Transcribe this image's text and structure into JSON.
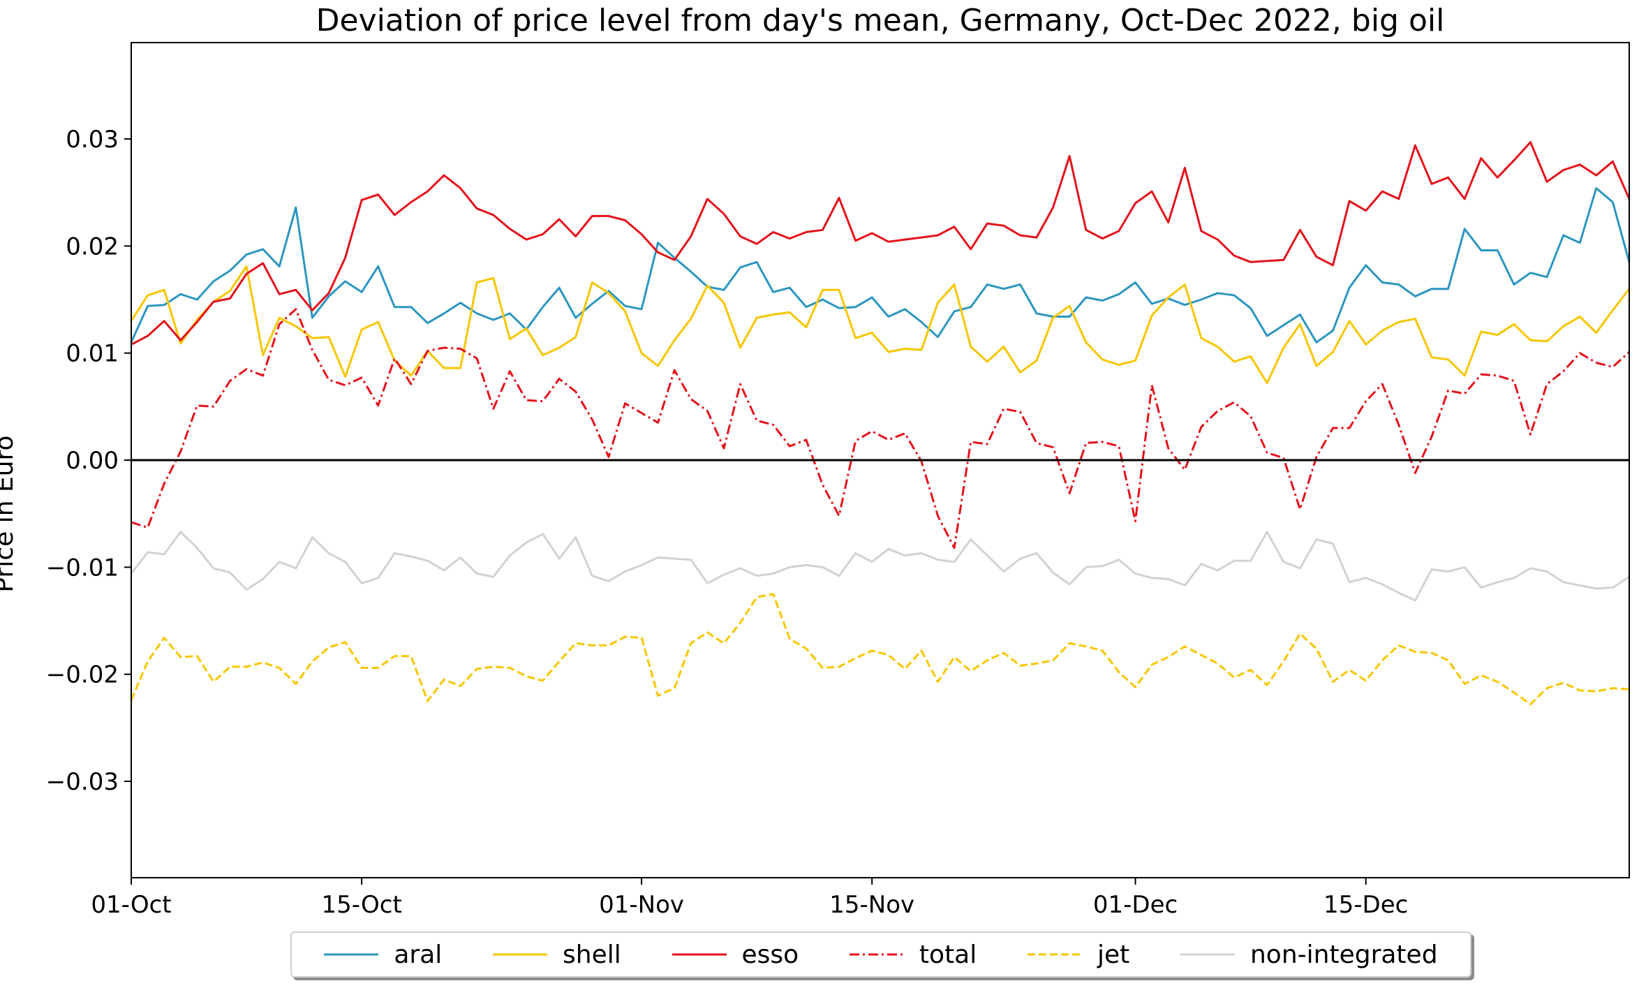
{
  "title": "Deviation of price level from day's mean, Germany, Oct-Dec 2022, big oil",
  "ylabel": "Price in Euro",
  "chart_data": {
    "type": "line",
    "title": "Deviation of price level from day's mean, Germany, Oct-Dec 2022, big oil",
    "xlabel": "",
    "ylabel": "Price in Euro",
    "x_start": "2022-10-01",
    "x_end": "2022-12-31",
    "xlim": [
      "2022-10-01",
      "2022-12-31"
    ],
    "ylim": [
      -0.039,
      0.039
    ],
    "x_ticks": [
      {
        "date": "2022-10-01",
        "label": "01-Oct"
      },
      {
        "date": "2022-10-15",
        "label": "15-Oct"
      },
      {
        "date": "2022-11-01",
        "label": "01-Nov"
      },
      {
        "date": "2022-11-15",
        "label": "15-Nov"
      },
      {
        "date": "2022-12-01",
        "label": "01-Dec"
      },
      {
        "date": "2022-12-15",
        "label": "15-Dec"
      }
    ],
    "y_ticks": [
      {
        "value": 0.03,
        "label": "0.03"
      },
      {
        "value": 0.02,
        "label": "0.02"
      },
      {
        "value": 0.01,
        "label": "0.01"
      },
      {
        "value": 0.0,
        "label": "0.00"
      },
      {
        "value": -0.01,
        "label": "−0.01"
      },
      {
        "value": -0.02,
        "label": "−0.02"
      },
      {
        "value": -0.03,
        "label": "−0.03"
      }
    ],
    "grid": false,
    "legend": "bottom-center",
    "zero_line": true,
    "series": [
      {
        "name": "aral",
        "color": "#2b96c0",
        "dash": "solid",
        "values": [
          0.011,
          0.0144,
          0.0145,
          0.0155,
          0.015,
          0.0167,
          0.0177,
          0.0192,
          0.0197,
          0.0181,
          0.0236,
          0.0133,
          0.0153,
          0.0167,
          0.0157,
          0.0181,
          0.0143,
          0.0143,
          0.0128,
          0.0137,
          0.0147,
          0.0137,
          0.0131,
          0.0137,
          0.0122,
          0.0143,
          0.0161,
          0.0133,
          0.0146,
          0.0158,
          0.0144,
          0.0141,
          0.0203,
          0.0189,
          0.0176,
          0.0162,
          0.0159,
          0.018,
          0.0185,
          0.0157,
          0.0161,
          0.0143,
          0.015,
          0.0142,
          0.0143,
          0.0152,
          0.0134,
          0.0141,
          0.0129,
          0.0115,
          0.0139,
          0.0143,
          0.0164,
          0.016,
          0.0164,
          0.0137,
          0.0134,
          0.0134,
          0.0152,
          0.0149,
          0.0155,
          0.0166,
          0.0146,
          0.0151,
          0.0145,
          0.015,
          0.0156,
          0.0154,
          0.0142,
          0.0116,
          0.0126,
          0.0136,
          0.011,
          0.0121,
          0.0161,
          0.0182,
          0.0166,
          0.0164,
          0.0153,
          0.016,
          0.016,
          0.0216,
          0.0196,
          0.0196,
          0.0164,
          0.0175,
          0.0171,
          0.021,
          0.0203,
          0.0254,
          0.0241,
          0.0185
        ]
      },
      {
        "name": "shell",
        "color": "#f7c600",
        "dash": "solid",
        "values": [
          0.013,
          0.0154,
          0.0159,
          0.0109,
          0.0131,
          0.0148,
          0.0158,
          0.0181,
          0.0098,
          0.0133,
          0.0125,
          0.0114,
          0.0115,
          0.0078,
          0.0122,
          0.0129,
          0.0093,
          0.0079,
          0.0102,
          0.0086,
          0.0086,
          0.0166,
          0.017,
          0.0113,
          0.0123,
          0.0098,
          0.0105,
          0.0115,
          0.0166,
          0.0156,
          0.0139,
          0.01,
          0.0088,
          0.0112,
          0.0132,
          0.0163,
          0.0147,
          0.0105,
          0.0133,
          0.0136,
          0.0138,
          0.0124,
          0.0159,
          0.0159,
          0.0114,
          0.0119,
          0.0101,
          0.0104,
          0.0103,
          0.0147,
          0.0164,
          0.0106,
          0.0092,
          0.0106,
          0.0082,
          0.0093,
          0.0133,
          0.0144,
          0.011,
          0.0094,
          0.0089,
          0.0093,
          0.0135,
          0.0152,
          0.0164,
          0.0114,
          0.0106,
          0.0092,
          0.0097,
          0.0072,
          0.0105,
          0.0127,
          0.0088,
          0.0101,
          0.013,
          0.0108,
          0.0121,
          0.0129,
          0.0132,
          0.0096,
          0.0094,
          0.0079,
          0.012,
          0.0117,
          0.0127,
          0.0112,
          0.0111,
          0.0125,
          0.0134,
          0.0119,
          0.014,
          0.016
        ]
      },
      {
        "name": "esso",
        "color": "#e3131b",
        "dash": "solid",
        "values": [
          0.0108,
          0.0116,
          0.013,
          0.0112,
          0.0129,
          0.0148,
          0.0151,
          0.0174,
          0.0184,
          0.0155,
          0.0159,
          0.014,
          0.0156,
          0.0189,
          0.0243,
          0.0248,
          0.0229,
          0.0241,
          0.0251,
          0.0266,
          0.0254,
          0.0235,
          0.0229,
          0.0216,
          0.0206,
          0.0211,
          0.0225,
          0.0209,
          0.0228,
          0.0228,
          0.0224,
          0.0211,
          0.0194,
          0.0187,
          0.0209,
          0.0244,
          0.023,
          0.0209,
          0.0202,
          0.0213,
          0.0207,
          0.0213,
          0.0215,
          0.0245,
          0.0205,
          0.0212,
          0.0204,
          0.0206,
          0.0208,
          0.021,
          0.0218,
          0.0197,
          0.0221,
          0.0219,
          0.021,
          0.0208,
          0.0236,
          0.0284,
          0.0215,
          0.0207,
          0.0214,
          0.024,
          0.0251,
          0.0222,
          0.0273,
          0.0214,
          0.0206,
          0.0191,
          0.0185,
          0.0186,
          0.0187,
          0.0215,
          0.019,
          0.0182,
          0.0242,
          0.0233,
          0.0251,
          0.0244,
          0.0294,
          0.0258,
          0.0264,
          0.0244,
          0.0282,
          0.0264,
          0.028,
          0.0297,
          0.026,
          0.0271,
          0.0276,
          0.0266,
          0.0279,
          0.0244
        ]
      },
      {
        "name": "total",
        "color": "#e3131b",
        "dash": "dashdot",
        "values": [
          -0.0058,
          -0.0063,
          -0.0022,
          0.0008,
          0.0051,
          0.005,
          0.0074,
          0.0085,
          0.0079,
          0.0127,
          0.0141,
          0.0103,
          0.0075,
          0.007,
          0.0077,
          0.0051,
          0.0095,
          0.0071,
          0.0102,
          0.0105,
          0.0104,
          0.0095,
          0.0048,
          0.0083,
          0.0056,
          0.0055,
          0.0076,
          0.0064,
          0.0038,
          0.0003,
          0.0053,
          0.0044,
          0.0035,
          0.0084,
          0.0057,
          0.0046,
          0.0011,
          0.0071,
          0.0037,
          0.0033,
          0.0013,
          0.0019,
          -0.0023,
          -0.0052,
          0.0018,
          0.0027,
          0.0019,
          0.0025,
          -0.0001,
          -0.0052,
          -0.0082,
          0.0017,
          0.0015,
          0.0048,
          0.0045,
          0.0016,
          0.0012,
          -0.0031,
          0.0016,
          0.0017,
          0.0013,
          -0.0057,
          0.007,
          0.0011,
          -0.0009,
          0.0031,
          0.0046,
          0.0054,
          0.0041,
          0.0007,
          0.0002,
          -0.0046,
          0.0003,
          0.003,
          0.003,
          0.0055,
          0.0071,
          0.0033,
          -0.0012,
          0.0022,
          0.0065,
          0.0062,
          0.008,
          0.0079,
          0.0074,
          0.0024,
          0.0071,
          0.0083,
          0.01,
          0.0091,
          0.0087,
          0.0101
        ]
      },
      {
        "name": "jet",
        "color": "#f7c600",
        "dash": "dashed",
        "values": [
          -0.0224,
          -0.0188,
          -0.0166,
          -0.0184,
          -0.0183,
          -0.0207,
          -0.0193,
          -0.0193,
          -0.0189,
          -0.0194,
          -0.0209,
          -0.0188,
          -0.0175,
          -0.017,
          -0.0194,
          -0.0194,
          -0.0183,
          -0.0183,
          -0.0225,
          -0.0205,
          -0.0211,
          -0.0195,
          -0.0193,
          -0.0194,
          -0.0202,
          -0.0206,
          -0.0188,
          -0.0171,
          -0.0173,
          -0.0173,
          -0.0165,
          -0.0166,
          -0.022,
          -0.0213,
          -0.0171,
          -0.0161,
          -0.0171,
          -0.0152,
          -0.0128,
          -0.0125,
          -0.0167,
          -0.0176,
          -0.0194,
          -0.0193,
          -0.0185,
          -0.0178,
          -0.0182,
          -0.0195,
          -0.0178,
          -0.0207,
          -0.0184,
          -0.0197,
          -0.0187,
          -0.018,
          -0.0192,
          -0.019,
          -0.0187,
          -0.0171,
          -0.0174,
          -0.0178,
          -0.0198,
          -0.0212,
          -0.0191,
          -0.0184,
          -0.0174,
          -0.0182,
          -0.019,
          -0.0203,
          -0.0196,
          -0.021,
          -0.0188,
          -0.0162,
          -0.0176,
          -0.0207,
          -0.0196,
          -0.0206,
          -0.0187,
          -0.0173,
          -0.0179,
          -0.018,
          -0.0187,
          -0.0209,
          -0.0201,
          -0.0207,
          -0.0217,
          -0.0228,
          -0.0213,
          -0.0208,
          -0.0215,
          -0.0216,
          -0.0213,
          -0.0214
        ]
      },
      {
        "name": "non-integrated",
        "color": "#d2d2d2",
        "dash": "solid",
        "values": [
          -0.0106,
          -0.0086,
          -0.0088,
          -0.0067,
          -0.0082,
          -0.0101,
          -0.0105,
          -0.0121,
          -0.0111,
          -0.0095,
          -0.0101,
          -0.0072,
          -0.0087,
          -0.0095,
          -0.0115,
          -0.011,
          -0.0087,
          -0.009,
          -0.0094,
          -0.0103,
          -0.0091,
          -0.0106,
          -0.0109,
          -0.0089,
          -0.0077,
          -0.0069,
          -0.0092,
          -0.0072,
          -0.0108,
          -0.0113,
          -0.0104,
          -0.0098,
          -0.0091,
          -0.0092,
          -0.0093,
          -0.0115,
          -0.0107,
          -0.0101,
          -0.0108,
          -0.0106,
          -0.01,
          -0.0098,
          -0.01,
          -0.0108,
          -0.0087,
          -0.0095,
          -0.0083,
          -0.0089,
          -0.0087,
          -0.0093,
          -0.0095,
          -0.0074,
          -0.0089,
          -0.0104,
          -0.0092,
          -0.0087,
          -0.0105,
          -0.0116,
          -0.01,
          -0.0099,
          -0.0093,
          -0.0106,
          -0.011,
          -0.0111,
          -0.0117,
          -0.0097,
          -0.0103,
          -0.0094,
          -0.0094,
          -0.0067,
          -0.0095,
          -0.0101,
          -0.0074,
          -0.0078,
          -0.0114,
          -0.011,
          -0.0116,
          -0.0124,
          -0.0131,
          -0.0102,
          -0.0104,
          -0.01,
          -0.0119,
          -0.0114,
          -0.011,
          -0.0101,
          -0.0104,
          -0.0114,
          -0.0117,
          -0.012,
          -0.0119,
          -0.0109
        ]
      }
    ]
  }
}
